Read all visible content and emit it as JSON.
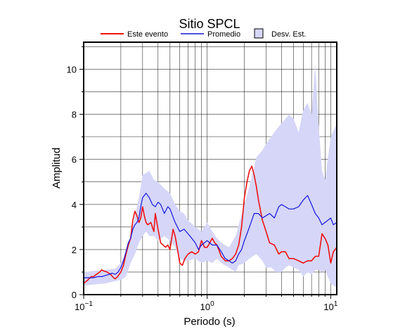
{
  "chart_data": {
    "type": "line",
    "title": "Sitio SPCL",
    "xlabel": "Periodo (s)",
    "ylabel": "Amplitud",
    "xscale": "log",
    "xlim": [
      0.1,
      11.2
    ],
    "ylim": [
      0,
      11.2
    ],
    "grid": true,
    "legend_position": "top",
    "x_ticks": [
      {
        "value": 0.1,
        "base": "10",
        "exp": "−1"
      },
      {
        "value": 1,
        "base": "10",
        "exp": "0"
      },
      {
        "value": 10,
        "base": "10",
        "exp": "1"
      }
    ],
    "y_ticks": [
      {
        "value": 0,
        "label": "0"
      },
      {
        "value": 2,
        "label": "2"
      },
      {
        "value": 4,
        "label": "4"
      },
      {
        "value": 6,
        "label": "6"
      },
      {
        "value": 8,
        "label": "8"
      },
      {
        "value": 10,
        "label": "10"
      }
    ],
    "legend": {
      "event_label": "Este evento",
      "mean_label": "Promedio",
      "band_label": "Desv. Est."
    },
    "colors": {
      "event": "#ee1111",
      "mean": "#1515dd",
      "band_fill": "#d6d6f8",
      "grid": "#000000"
    },
    "series": [
      {
        "name": "Este evento",
        "x": [
          0.1,
          0.108,
          0.115,
          0.12,
          0.127,
          0.135,
          0.14,
          0.145,
          0.155,
          0.165,
          0.175,
          0.18,
          0.188,
          0.2,
          0.21,
          0.22,
          0.23,
          0.24,
          0.25,
          0.26,
          0.27,
          0.28,
          0.29,
          0.3,
          0.31,
          0.32,
          0.33,
          0.35,
          0.37,
          0.38,
          0.4,
          0.42,
          0.44,
          0.46,
          0.48,
          0.5,
          0.53,
          0.55,
          0.58,
          0.6,
          0.63,
          0.66,
          0.7,
          0.75,
          0.8,
          0.85,
          0.9,
          0.95,
          1.0,
          1.05,
          1.1,
          1.15,
          1.2,
          1.3,
          1.4,
          1.5,
          1.6,
          1.7,
          1.8,
          1.9,
          2.0,
          2.1,
          2.2,
          2.3,
          2.4,
          2.5,
          2.6,
          2.8,
          3.0,
          3.2,
          3.5,
          3.8,
          4.0,
          4.3,
          4.6,
          5.0,
          5.5,
          6.0,
          6.5,
          7.0,
          7.5,
          8.0,
          8.5,
          9.0,
          9.5,
          10.0,
          10.5,
          11.2
        ],
        "y": [
          0.5,
          0.65,
          0.8,
          0.8,
          0.9,
          1.0,
          1.1,
          1.05,
          1.0,
          0.9,
          0.75,
          0.7,
          0.8,
          1.0,
          1.3,
          1.8,
          2.2,
          2.5,
          3.3,
          3.7,
          3.5,
          3.2,
          3.4,
          3.9,
          3.5,
          3.2,
          3.1,
          3.2,
          2.8,
          3.6,
          2.9,
          2.3,
          2.2,
          2.1,
          2.2,
          2.0,
          2.9,
          2.6,
          1.9,
          1.4,
          1.3,
          1.6,
          1.8,
          1.9,
          1.8,
          1.9,
          2.4,
          2.1,
          2.1,
          2.3,
          2.5,
          2.3,
          2.2,
          1.7,
          1.5,
          1.5,
          1.6,
          1.8,
          2.2,
          3.0,
          4.3,
          5.0,
          5.5,
          5.7,
          5.3,
          4.8,
          4.2,
          3.3,
          2.8,
          2.3,
          2.2,
          1.8,
          1.9,
          1.9,
          1.6,
          1.6,
          1.5,
          1.4,
          1.5,
          1.5,
          1.7,
          1.7,
          2.7,
          2.5,
          2.2,
          1.4,
          1.9,
          2.1
        ]
      },
      {
        "name": "Promedio",
        "x": [
          0.1,
          0.11,
          0.12,
          0.13,
          0.14,
          0.15,
          0.16,
          0.17,
          0.18,
          0.19,
          0.2,
          0.21,
          0.22,
          0.23,
          0.24,
          0.25,
          0.26,
          0.27,
          0.28,
          0.29,
          0.3,
          0.32,
          0.34,
          0.36,
          0.38,
          0.4,
          0.42,
          0.45,
          0.48,
          0.5,
          0.55,
          0.6,
          0.65,
          0.7,
          0.75,
          0.8,
          0.85,
          0.9,
          1.0,
          1.1,
          1.2,
          1.3,
          1.4,
          1.5,
          1.6,
          1.7,
          1.8,
          1.9,
          2.0,
          2.1,
          2.2,
          2.3,
          2.4,
          2.6,
          2.8,
          3.0,
          3.2,
          3.5,
          3.8,
          4.0,
          4.3,
          4.6,
          5.0,
          5.5,
          6.0,
          6.5,
          7.0,
          7.5,
          8.0,
          8.5,
          9.0,
          9.5,
          10.0,
          10.5,
          11.2
        ],
        "y": [
          0.75,
          0.75,
          0.75,
          0.8,
          0.8,
          0.85,
          0.9,
          0.95,
          0.9,
          1.0,
          1.2,
          1.5,
          1.9,
          2.3,
          2.5,
          2.9,
          3.1,
          3.2,
          3.4,
          3.9,
          4.3,
          4.5,
          4.3,
          4.0,
          3.9,
          4.1,
          4.0,
          3.6,
          3.9,
          3.8,
          3.2,
          2.8,
          2.9,
          2.7,
          2.5,
          2.3,
          2.0,
          2.2,
          2.4,
          2.2,
          2.2,
          1.9,
          1.6,
          1.5,
          1.4,
          1.5,
          1.8,
          2.0,
          2.4,
          2.7,
          3.0,
          3.3,
          3.6,
          3.6,
          3.4,
          3.5,
          3.6,
          3.4,
          3.9,
          4.0,
          3.9,
          3.8,
          3.8,
          3.9,
          4.2,
          4.4,
          4.0,
          3.6,
          3.4,
          3.1,
          3.2,
          3.3,
          3.4,
          3.1,
          3.2
        ]
      }
    ],
    "band": {
      "name": "Desv. Est.",
      "x": [
        0.1,
        0.12,
        0.15,
        0.18,
        0.2,
        0.22,
        0.24,
        0.26,
        0.28,
        0.3,
        0.32,
        0.34,
        0.37,
        0.4,
        0.45,
        0.5,
        0.55,
        0.6,
        0.65,
        0.7,
        0.8,
        0.9,
        1.0,
        1.1,
        1.2,
        1.3,
        1.5,
        1.7,
        1.8,
        2.0,
        2.2,
        2.5,
        2.8,
        3.0,
        3.3,
        3.6,
        4.0,
        4.3,
        4.6,
        5.0,
        5.5,
        6.0,
        6.5,
        7.0,
        7.5,
        8.0,
        8.5,
        9.0,
        10.0,
        11.2
      ],
      "upper": [
        1.0,
        1.05,
        1.1,
        1.15,
        1.4,
        1.8,
        2.6,
        3.5,
        4.3,
        5.3,
        5.4,
        5.5,
        5.1,
        5.0,
        4.7,
        4.5,
        4.0,
        3.7,
        3.6,
        3.3,
        3.0,
        2.8,
        3.2,
        2.8,
        2.5,
        2.3,
        2.1,
        2.6,
        3.1,
        4.0,
        4.8,
        6.1,
        6.4,
        6.7,
        7.0,
        7.3,
        7.6,
        7.8,
        8.0,
        7.8,
        7.2,
        8.2,
        8.5,
        8.0,
        10.2,
        7.5,
        5.5,
        5.1,
        7.0,
        7.6
      ],
      "lower": [
        0.4,
        0.45,
        0.5,
        0.6,
        0.65,
        0.8,
        1.4,
        1.8,
        2.3,
        2.6,
        2.8,
        2.6,
        2.6,
        2.4,
        2.6,
        2.4,
        2.1,
        1.6,
        1.5,
        1.5,
        1.6,
        1.4,
        1.5,
        1.4,
        1.6,
        1.4,
        1.2,
        1.0,
        1.3,
        1.4,
        1.6,
        1.8,
        1.5,
        1.2,
        1.2,
        1.0,
        1.0,
        1.2,
        1.3,
        1.2,
        1.1,
        0.8,
        1.0,
        0.9,
        1.1,
        1.1,
        1.0,
        1.1,
        0.5,
        0.3
      ]
    }
  }
}
